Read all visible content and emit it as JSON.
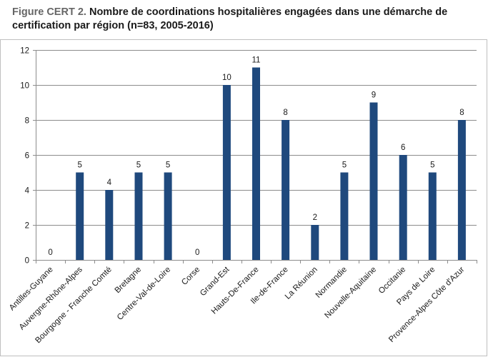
{
  "figure": {
    "prefix": "Figure CERT 2.",
    "title": "Nombre de coordinations hospitalières engagées dans une démarche de certification par région (n=83, 2005-2016)"
  },
  "chart_data": {
    "type": "bar",
    "title": "Figure CERT 2. Nombre de coordinations hospitalières engagées dans une démarche de certification par région (n=83, 2005-2016)",
    "xlabel": "",
    "ylabel": "",
    "categories": [
      "Antilles-Guyane",
      "Auvergne-Rhône-Alpes",
      "Bourgogne - Franche Comté",
      "Bretagne",
      "Centre-Val-de-Loire",
      "Corse",
      "Grand-Est",
      "Hauts-De-France",
      "Ile-de-France",
      "La Réunion",
      "Normandie",
      "Nouvelle-Aquitaine",
      "Occitanie",
      "Pays de Loire",
      "Provence-Alpes Côte d'Azur"
    ],
    "values": [
      0,
      5,
      4,
      5,
      5,
      0,
      10,
      11,
      8,
      2,
      5,
      9,
      6,
      5,
      8
    ],
    "ylim": [
      0,
      12
    ],
    "yticks": [
      0,
      2,
      4,
      6,
      8,
      10,
      12
    ],
    "grid": true,
    "legend": "none",
    "bar_color": "#1f497d",
    "grid_color": "#8c8c8c"
  }
}
